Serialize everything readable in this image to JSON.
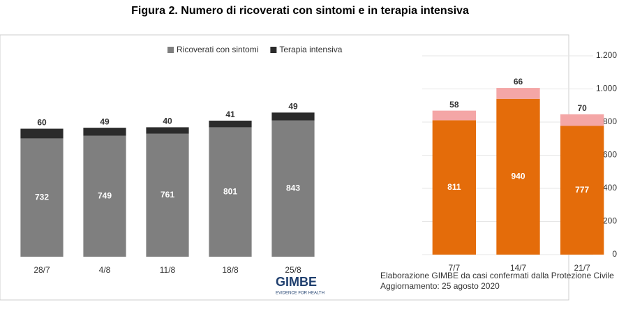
{
  "title": "Figura 2. Numero di ricoverati con sintomi e in terapia intensiva",
  "footer": {
    "source": "Elaborazione GIMBE da casi confermati dalla Protezione Civile",
    "updated": "Aggiornamento: 25 agosto 2020",
    "logo": "GIMBE",
    "tagline": "EVIDENCE FOR HEALTH"
  },
  "chart_data": [
    {
      "type": "bar",
      "stacked": true,
      "categories": [
        "28/7",
        "4/8",
        "11/8",
        "18/8",
        "25/8"
      ],
      "series": [
        {
          "name": "Ricoverati con sintomi",
          "color": "#7f7f7f",
          "values": [
            732,
            749,
            761,
            801,
            843
          ]
        },
        {
          "name": "Terapia intensiva",
          "color": "#2b2b2b",
          "values": [
            60,
            49,
            40,
            41,
            49
          ]
        }
      ],
      "ylim": [
        0,
        1200
      ],
      "legend": "top"
    },
    {
      "type": "bar",
      "stacked": true,
      "categories": [
        "7/7",
        "14/7",
        "21/7"
      ],
      "series": [
        {
          "name": "Ricoverati con sintomi",
          "color": "#e46c0a",
          "values": [
            811,
            940,
            777
          ]
        },
        {
          "name": "Terapia intensiva",
          "color": "#f4a6a6",
          "values": [
            58,
            66,
            70
          ]
        }
      ],
      "ylim": [
        0,
        1200
      ],
      "yticks": [
        0,
        200,
        400,
        600,
        800,
        {
          "value": 1000,
          "label": "1.000"
        },
        {
          "value": 1200,
          "label": "1.200"
        }
      ]
    }
  ]
}
